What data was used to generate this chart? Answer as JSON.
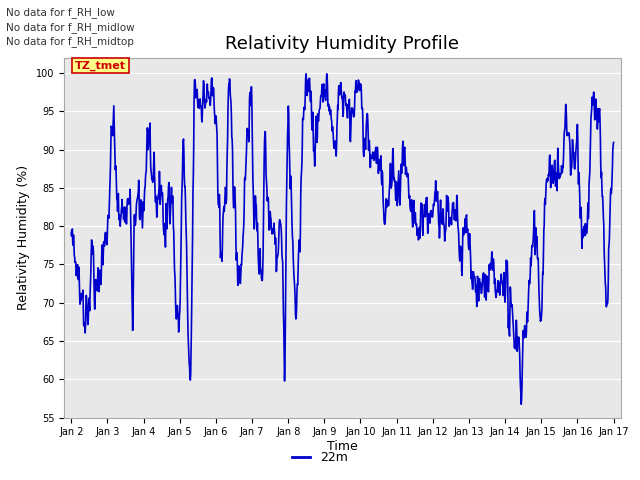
{
  "title": "Relativity Humidity Profile",
  "xlabel": "Time",
  "ylabel": "Relativity Humidity (%)",
  "ylim": [
    55,
    102
  ],
  "yticks": [
    55,
    60,
    65,
    70,
    75,
    80,
    85,
    90,
    95,
    100
  ],
  "line_color": "#0000CC",
  "line_width": 1.2,
  "legend_label": "22m",
  "legend_color": "#0000CC",
  "no_data_texts": [
    "No data for f_RH_low",
    "No data for f_RH_midlow",
    "No data for f_RH_midtop"
  ],
  "box_label": "TZ_tmet",
  "box_color": "#CC0000",
  "box_bg": "#FFFF88",
  "background_color": "#E8E8E8",
  "grid_color": "#FFFFFF",
  "xtick_labels": [
    "Jan 2",
    "Jan 3",
    "Jan 4",
    "Jan 5",
    "Jan 6",
    "Jan 7",
    "Jan 8",
    "Jan 9",
    "Jan 10",
    "Jan 11",
    "Jan 12",
    "Jan 13",
    "Jan 14",
    "Jan 15",
    "Jan 16",
    "Jan 17"
  ],
  "seed": 42
}
